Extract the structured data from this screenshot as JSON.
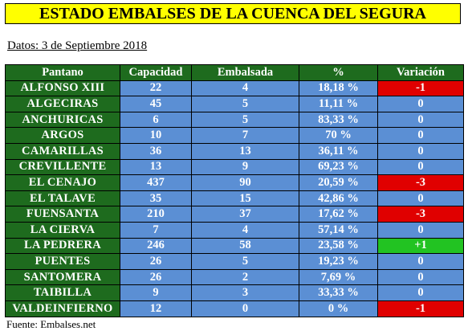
{
  "title": "ESTADO EMBALSES DE LA CUENCA DEL SEGURA",
  "date_label": "Datos: 3 de Septiembre 2018",
  "table": {
    "headers": [
      "Pantano",
      "Capacidad",
      "Embalsada",
      "%",
      "Variación"
    ],
    "rows": [
      {
        "name": "ALFONSO XIII",
        "capacity": "22",
        "stored": "4",
        "percent": "18,18 %",
        "variation": "-1",
        "trend": "neg"
      },
      {
        "name": "ALGECIRAS",
        "capacity": "45",
        "stored": "5",
        "percent": "11,11 %",
        "variation": "0",
        "trend": "zero"
      },
      {
        "name": "ANCHURICAS",
        "capacity": "6",
        "stored": "5",
        "percent": "83,33 %",
        "variation": "0",
        "trend": "zero"
      },
      {
        "name": "ARGOS",
        "capacity": "10",
        "stored": "7",
        "percent": "70 %",
        "variation": "0",
        "trend": "zero"
      },
      {
        "name": "CAMARILLAS",
        "capacity": "36",
        "stored": "13",
        "percent": "36,11 %",
        "variation": "0",
        "trend": "zero"
      },
      {
        "name": "CREVILLENTE",
        "capacity": "13",
        "stored": "9",
        "percent": "69,23 %",
        "variation": "0",
        "trend": "zero"
      },
      {
        "name": "EL CENAJO",
        "capacity": "437",
        "stored": "90",
        "percent": "20,59 %",
        "variation": "-3",
        "trend": "neg"
      },
      {
        "name": "EL TALAVE",
        "capacity": "35",
        "stored": "15",
        "percent": "42,86 %",
        "variation": "0",
        "trend": "zero"
      },
      {
        "name": "FUENSANTA",
        "capacity": "210",
        "stored": "37",
        "percent": "17,62 %",
        "variation": "-3",
        "trend": "neg"
      },
      {
        "name": "LA CIERVA",
        "capacity": "7",
        "stored": "4",
        "percent": "57,14 %",
        "variation": "0",
        "trend": "zero"
      },
      {
        "name": "LA PEDRERA",
        "capacity": "246",
        "stored": "58",
        "percent": "23,58 %",
        "variation": "+1",
        "trend": "pos"
      },
      {
        "name": "PUENTES",
        "capacity": "26",
        "stored": "5",
        "percent": "19,23 %",
        "variation": "0",
        "trend": "zero"
      },
      {
        "name": "SANTOMERA",
        "capacity": "26",
        "stored": "2",
        "percent": "7,69 %",
        "variation": "0",
        "trend": "zero"
      },
      {
        "name": "TAIBILLA",
        "capacity": "9",
        "stored": "3",
        "percent": "33,33 %",
        "variation": "0",
        "trend": "zero"
      },
      {
        "name": "VALDEINFIERNO",
        "capacity": "12",
        "stored": "0",
        "percent": "0 %",
        "variation": "-1",
        "trend": "neg"
      }
    ]
  },
  "source_label": "Fuente: Embalses.net",
  "colors": {
    "title_bg": "#ffff00",
    "header_bg": "#1e6b1e",
    "value_bg": "#5b8fd4",
    "negative": "#e00000",
    "positive": "#22c322"
  }
}
